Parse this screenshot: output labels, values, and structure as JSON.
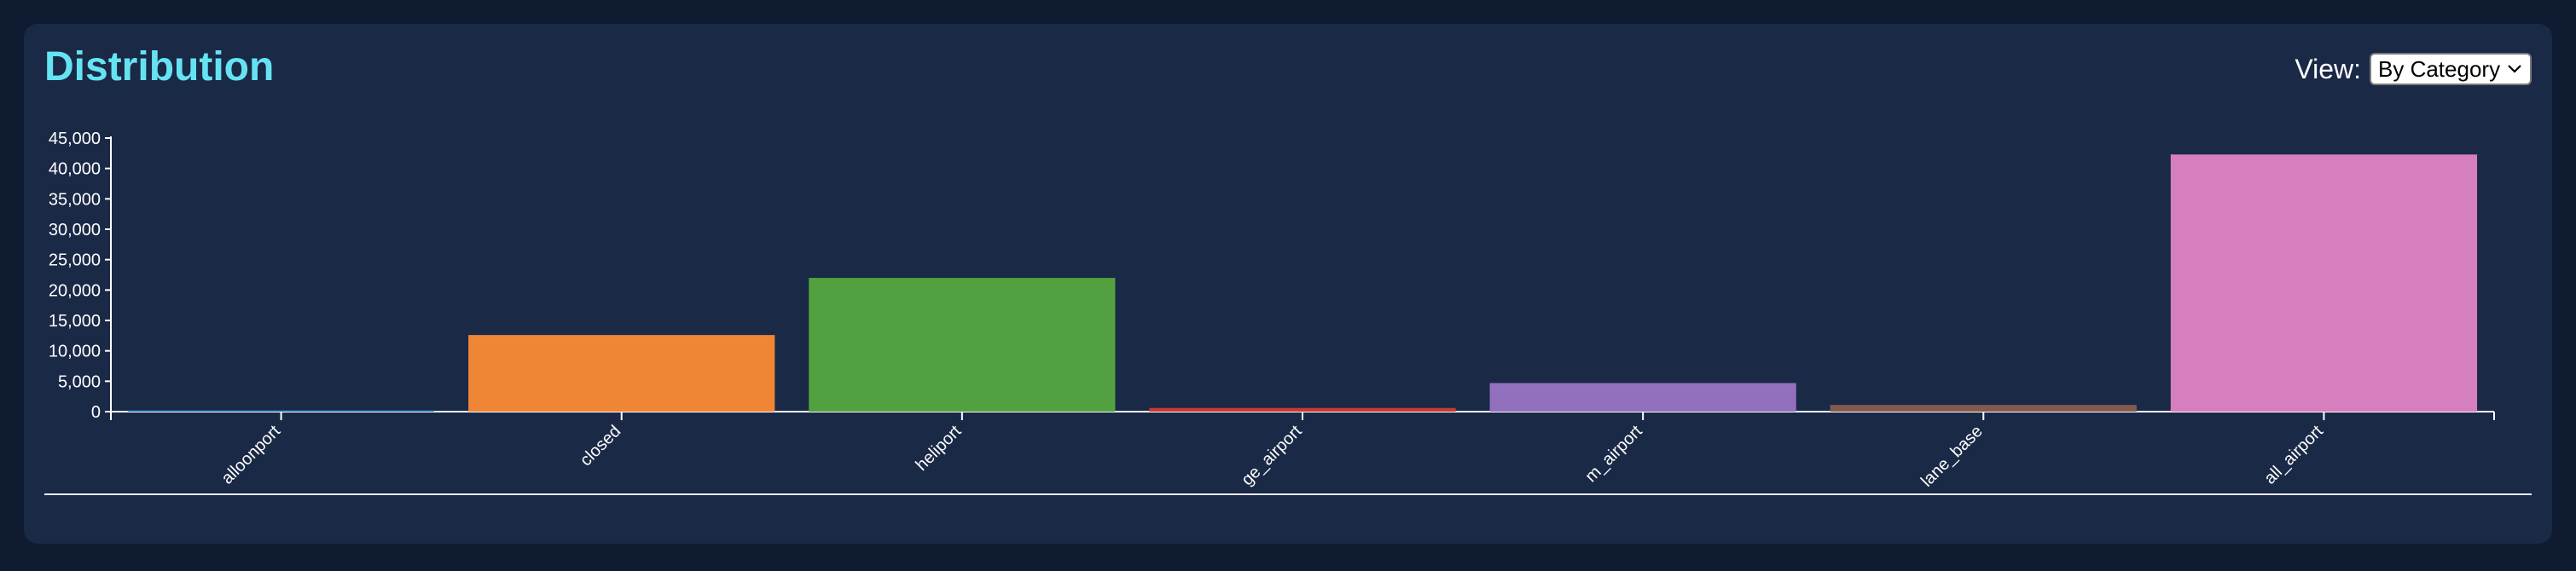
{
  "header": {
    "title": "Distribution",
    "view_label": "View:",
    "view_selected": "By Category"
  },
  "chart_data": {
    "type": "bar",
    "categories": [
      "balloonport",
      "closed",
      "heliport",
      "large_airport",
      "medium_airport",
      "seaplane_base",
      "small_airport"
    ],
    "visible_tick_labels": [
      "alloonport",
      "closed",
      "heliport",
      "ge_airport",
      "m_airport",
      "lane_base",
      "all_airport"
    ],
    "values": [
      40,
      12600,
      22000,
      600,
      4700,
      1100,
      42300
    ],
    "colors": [
      "#1f77b4",
      "#ef8636",
      "#52a03f",
      "#c53b32",
      "#9370bd",
      "#845a4f",
      "#d57fbf"
    ],
    "yticks": [
      0,
      5000,
      10000,
      15000,
      20000,
      25000,
      30000,
      35000,
      40000,
      45000
    ],
    "ylim": [
      0,
      45000
    ],
    "grid": false,
    "legend": "none"
  }
}
